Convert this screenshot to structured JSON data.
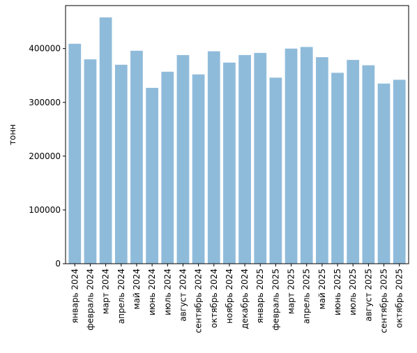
{
  "chart_data": {
    "type": "bar",
    "title": "",
    "xlabel": "",
    "ylabel": "тонн",
    "ylim": [
      0,
      480000
    ],
    "yticks": [
      0,
      100000,
      200000,
      300000,
      400000
    ],
    "ytick_labels": [
      "0",
      "100000",
      "200000",
      "300000",
      "400000"
    ],
    "grid": false,
    "bar_color": "#8fbbda",
    "categories": [
      "январь 2024",
      "февраль 2024",
      "март 2024",
      "апрель 2024",
      "май 2024",
      "июнь 2024",
      "июль 2024",
      "август 2024",
      "сентябрь 2024",
      "октябрь 2024",
      "ноябрь 2024",
      "декабрь 2024",
      "январь 2025",
      "февраль 2025",
      "март 2025",
      "апрель 2025",
      "май 2025",
      "июнь 2025",
      "июль 2025",
      "август 2025",
      "сентябрь 2025",
      "октябрь 2025"
    ],
    "values": [
      409000,
      380000,
      458000,
      370000,
      396000,
      327000,
      357000,
      388000,
      352000,
      395000,
      374000,
      388000,
      392000,
      346000,
      400000,
      403000,
      384000,
      355000,
      379000,
      369000,
      335000,
      342000
    ]
  }
}
